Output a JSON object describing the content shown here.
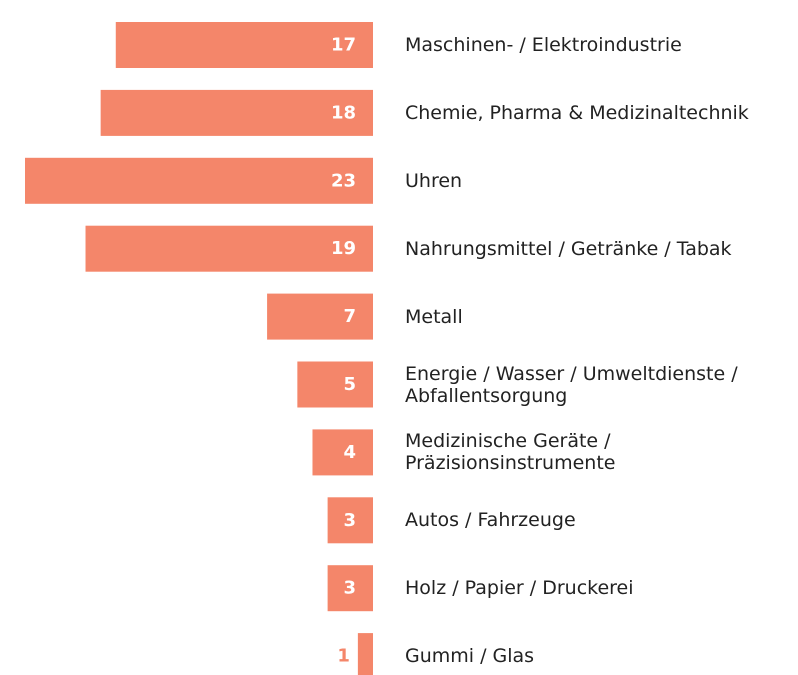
{
  "chart_data": {
    "type": "barh",
    "categories": [
      "Maschinen- / Elektroindustrie",
      "Chemie, Pharma & Medizinaltechnik",
      "Uhren",
      "Nahrungsmittel / Getränke / Tabak",
      "Metall",
      "Energie / Wasser / Umweltdienste /\nAbfallentsorgung",
      "Medizinische Geräte /\nPräzisionsinstrumente",
      "Autos / Fahrzeuge",
      "Holz / Papier / Druckerei",
      "Gummi / Glas"
    ],
    "values": [
      17,
      18,
      23,
      19,
      7,
      5,
      4,
      3,
      3,
      1
    ],
    "color": "#f4866a"
  }
}
